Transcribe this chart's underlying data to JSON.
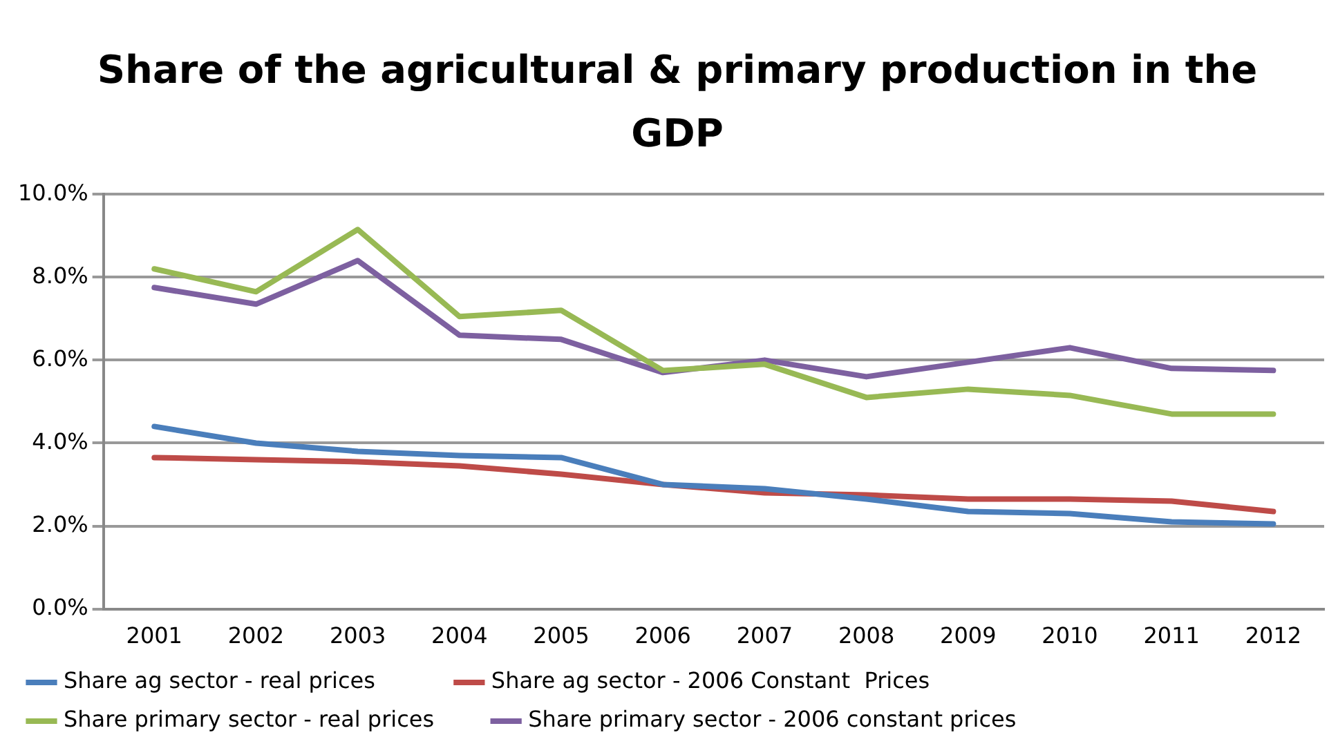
{
  "chart_data": {
    "type": "line",
    "title": "Share of the agricultural & primary production in the GDP",
    "categories": [
      "2001",
      "2002",
      "2003",
      "2004",
      "2005",
      "2006",
      "2007",
      "2008",
      "2009",
      "2010",
      "2011",
      "2012"
    ],
    "series": [
      {
        "name": "Share ag sector - real prices",
        "color": "#4a7ebb",
        "values": [
          4.4,
          4.0,
          3.8,
          3.7,
          3.65,
          3.0,
          2.9,
          2.65,
          2.35,
          2.3,
          2.1,
          2.05
        ]
      },
      {
        "name": "Share ag sector - 2006 Constant  Prices",
        "color": "#be4b48",
        "values": [
          3.65,
          3.6,
          3.55,
          3.45,
          3.25,
          3.0,
          2.8,
          2.75,
          2.65,
          2.65,
          2.6,
          2.35
        ]
      },
      {
        "name": "Share primary sector - real prices",
        "color": "#98b954",
        "values": [
          8.2,
          7.65,
          9.15,
          7.05,
          7.2,
          5.75,
          5.9,
          5.1,
          5.3,
          5.15,
          4.7,
          4.7
        ]
      },
      {
        "name": "Share primary sector - 2006 constant prices",
        "color": "#7d60a0",
        "values": [
          7.75,
          7.35,
          8.4,
          6.6,
          6.5,
          5.7,
          6.0,
          5.6,
          5.95,
          6.3,
          5.8,
          5.75
        ]
      }
    ],
    "ylim": [
      0,
      10
    ],
    "yticks": [
      {
        "value": 0,
        "label": "0.0%"
      },
      {
        "value": 2,
        "label": "2.0%"
      },
      {
        "value": 4,
        "label": "4.0%"
      },
      {
        "value": 6,
        "label": "6.0%"
      },
      {
        "value": 8,
        "label": "8.0%"
      },
      {
        "value": 10,
        "label": "10.0%"
      }
    ],
    "grid": "y",
    "legend": "bottom",
    "marker": "none",
    "line_style": "solid"
  }
}
